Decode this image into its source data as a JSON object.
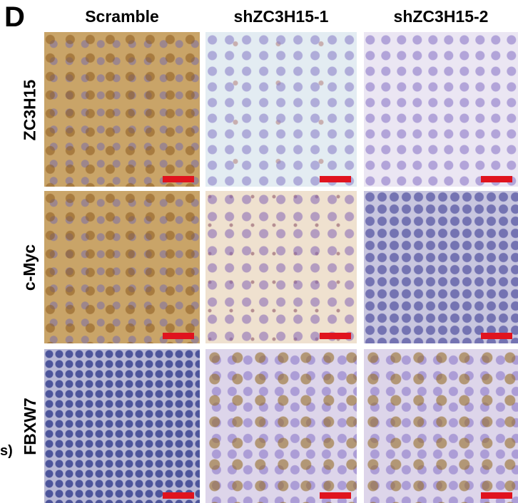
{
  "panel_label": "D",
  "columns": [
    "Scramble",
    "shZC3H15-1",
    "shZC3H15-2"
  ],
  "rows": [
    "ZC3H15",
    "c-Myc",
    "FBXW7"
  ],
  "side_note": "s)"
}
